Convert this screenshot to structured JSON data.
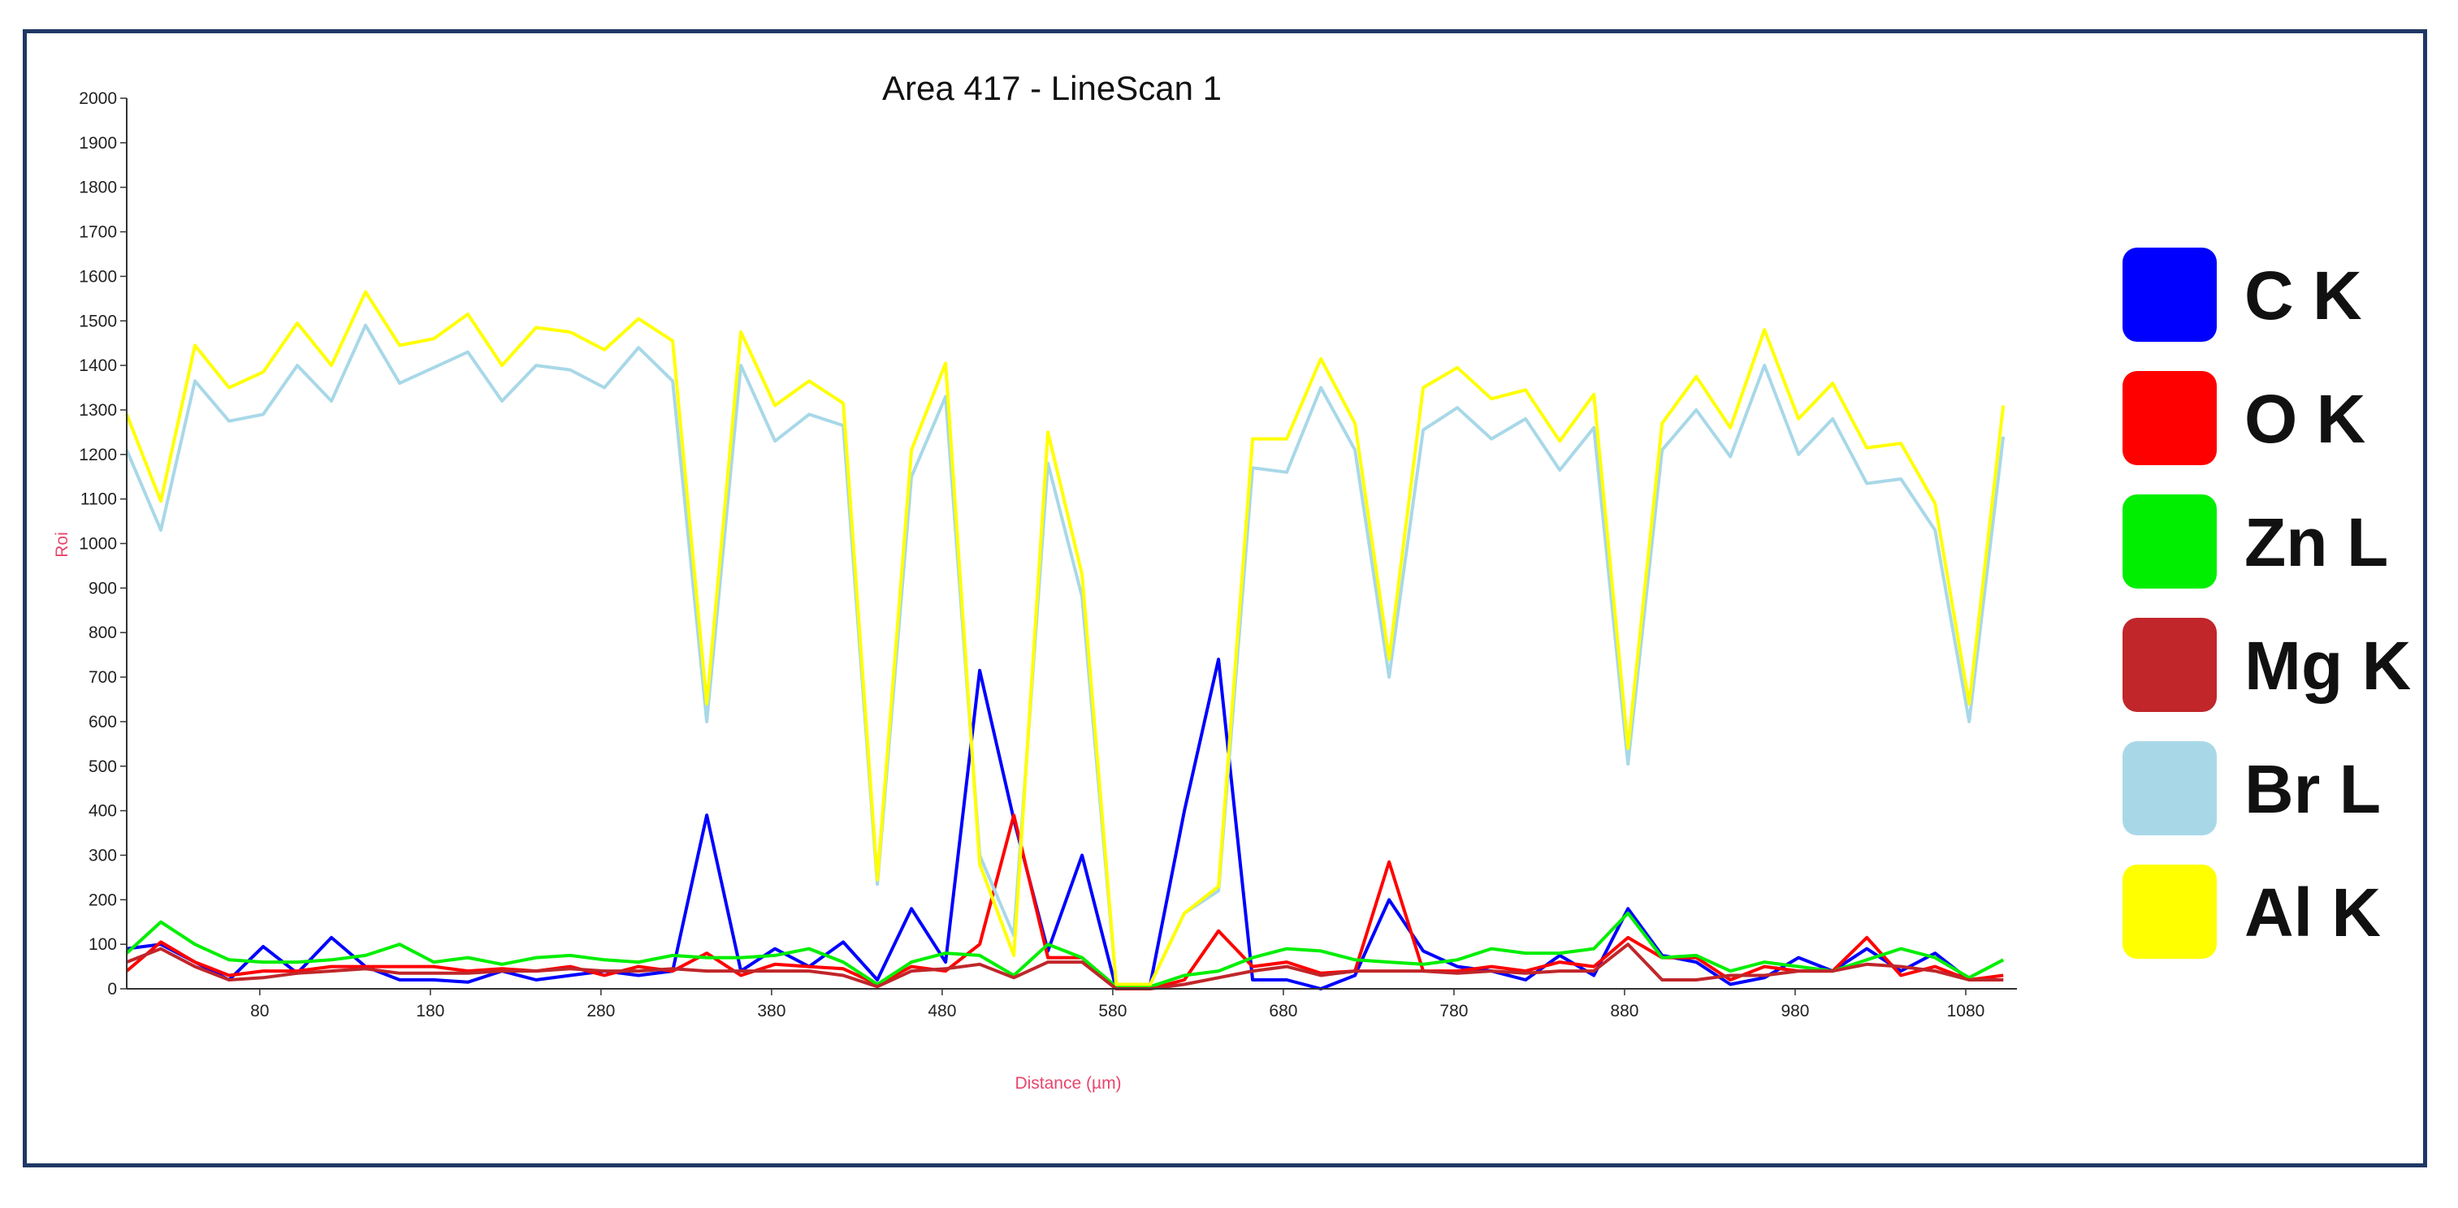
{
  "chart_data": {
    "type": "line",
    "title": "Area 417 - LineScan 1",
    "xlabel": "Distance (µm)",
    "ylabel": "Roi",
    "xlim": [
      2,
      1110
    ],
    "ylim": [
      0,
      2000
    ],
    "x_ticks": [
      80,
      180,
      280,
      380,
      480,
      580,
      680,
      780,
      880,
      980,
      1080
    ],
    "y_ticks": [
      0,
      100,
      200,
      300,
      400,
      500,
      600,
      700,
      800,
      900,
      1000,
      1100,
      1200,
      1300,
      1400,
      1500,
      1600,
      1700,
      1800,
      1900,
      2000
    ],
    "grid": false,
    "legend_position": "right",
    "x": [
      2,
      22,
      42,
      62,
      82,
      102,
      122,
      142,
      162,
      182,
      202,
      222,
      242,
      262,
      282,
      302,
      322,
      342,
      362,
      382,
      402,
      422,
      442,
      462,
      482,
      502,
      522,
      542,
      562,
      582,
      602,
      622,
      642,
      662,
      682,
      702,
      722,
      742,
      762,
      782,
      802,
      822,
      842,
      862,
      882,
      902,
      922,
      942,
      962,
      982,
      1002,
      1022,
      1042,
      1062,
      1082,
      1102
    ],
    "series": [
      {
        "name": "C K",
        "color": "#0000ff",
        "values": [
          90,
          100,
          60,
          20,
          95,
          35,
          115,
          50,
          20,
          20,
          15,
          40,
          20,
          30,
          40,
          30,
          40,
          390,
          40,
          90,
          50,
          105,
          20,
          180,
          60,
          715,
          380,
          85,
          300,
          0,
          10,
          400,
          740,
          20,
          20,
          0,
          30,
          200,
          85,
          50,
          40,
          20,
          75,
          30,
          180,
          75,
          60,
          10,
          25,
          70,
          40,
          90,
          40,
          80,
          20,
          20
        ]
      },
      {
        "name": "O K",
        "color": "#ff0000",
        "values": [
          40,
          105,
          60,
          30,
          40,
          40,
          50,
          50,
          50,
          50,
          40,
          45,
          40,
          50,
          30,
          50,
          40,
          80,
          30,
          55,
          50,
          45,
          10,
          50,
          40,
          100,
          390,
          70,
          70,
          0,
          0,
          20,
          130,
          50,
          60,
          35,
          40,
          285,
          40,
          40,
          50,
          40,
          60,
          50,
          115,
          70,
          70,
          20,
          50,
          40,
          40,
          115,
          30,
          50,
          20,
          30
        ]
      },
      {
        "name": "Zn L",
        "color": "#00ee00",
        "values": [
          80,
          150,
          100,
          65,
          60,
          60,
          65,
          75,
          100,
          60,
          70,
          55,
          70,
          75,
          65,
          60,
          75,
          70,
          70,
          75,
          90,
          60,
          10,
          60,
          80,
          75,
          30,
          100,
          70,
          5,
          5,
          30,
          40,
          70,
          90,
          85,
          65,
          60,
          55,
          65,
          90,
          80,
          80,
          90,
          170,
          70,
          75,
          40,
          60,
          50,
          40,
          65,
          90,
          70,
          25,
          65
        ]
      },
      {
        "name": "Mg K",
        "color": "#c0262a",
        "values": [
          60,
          90,
          50,
          20,
          25,
          35,
          40,
          45,
          35,
          35,
          35,
          40,
          40,
          45,
          40,
          40,
          45,
          40,
          40,
          40,
          40,
          30,
          5,
          40,
          45,
          55,
          25,
          60,
          60,
          0,
          0,
          10,
          25,
          40,
          50,
          30,
          40,
          40,
          40,
          35,
          40,
          35,
          40,
          40,
          100,
          20,
          20,
          30,
          30,
          40,
          40,
          55,
          50,
          40,
          20,
          20
        ]
      },
      {
        "name": "Br L",
        "color": "#a8d8e8",
        "values": [
          1210,
          1030,
          1365,
          1275,
          1290,
          1400,
          1320,
          1490,
          1360,
          1395,
          1430,
          1320,
          1400,
          1390,
          1350,
          1440,
          1365,
          600,
          1400,
          1230,
          1290,
          1265,
          235,
          1150,
          1330,
          300,
          120,
          1180,
          880,
          10,
          10,
          170,
          220,
          1170,
          1160,
          1350,
          1210,
          700,
          1255,
          1305,
          1235,
          1280,
          1165,
          1260,
          505,
          1210,
          1300,
          1195,
          1400,
          1200,
          1280,
          1135,
          1145,
          1030,
          600,
          1240
        ]
      },
      {
        "name": "Al K",
        "color": "#ffff00",
        "values": [
          1290,
          1095,
          1445,
          1350,
          1385,
          1495,
          1400,
          1565,
          1445,
          1460,
          1515,
          1400,
          1485,
          1475,
          1435,
          1505,
          1455,
          640,
          1475,
          1310,
          1365,
          1315,
          245,
          1210,
          1405,
          280,
          75,
          1250,
          930,
          10,
          10,
          170,
          230,
          1235,
          1235,
          1415,
          1270,
          740,
          1350,
          1395,
          1325,
          1345,
          1230,
          1335,
          540,
          1270,
          1375,
          1260,
          1480,
          1280,
          1360,
          1215,
          1225,
          1090,
          640,
          1310
        ]
      }
    ]
  }
}
